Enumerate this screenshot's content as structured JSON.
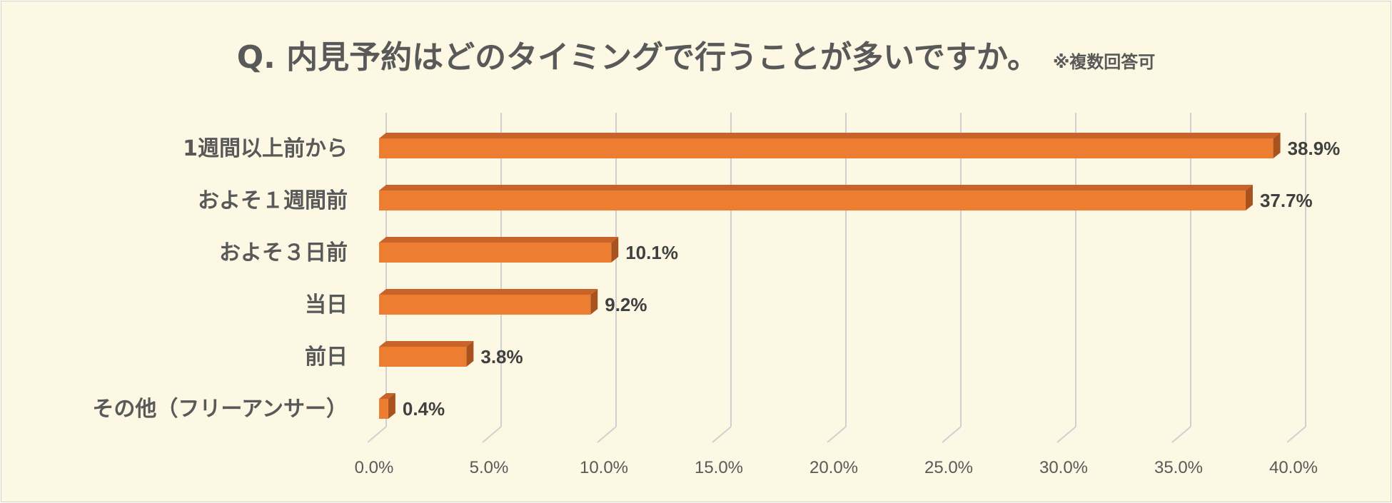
{
  "chart_data": {
    "type": "bar",
    "orientation": "horizontal",
    "style": "3d",
    "title": "Q. 内見予約はどのタイミングで行うことが多いですか。",
    "subtitle": "※複数回答可",
    "categories": [
      "1週間以上前から",
      "およそ１週間前",
      "およそ３日前",
      "当日",
      "前日",
      "その他（フリーアンサー）"
    ],
    "values": [
      38.9,
      37.7,
      10.1,
      9.2,
      3.8,
      0.4
    ],
    "data_labels": [
      "38.9%",
      "37.7%",
      "10.1%",
      "9.2%",
      "3.8%",
      "0.4%"
    ],
    "xlim": [
      0,
      40
    ],
    "x_ticks": [
      "0.0%",
      "5.0%",
      "10.0%",
      "15.0%",
      "20.0%",
      "25.0%",
      "30.0%",
      "35.0%",
      "40.0%"
    ],
    "xlabel": "",
    "ylabel": "",
    "grid": true,
    "legend": "none",
    "colors": {
      "background": "#fdf8e4",
      "bar_front": "#ed7d31",
      "bar_top": "#c8642a",
      "bar_side": "#a85220",
      "gridline": "#d0d0d0",
      "title": "#595959",
      "category_label": "#595959",
      "data_label": "#404040",
      "tick_label": "#595959"
    }
  }
}
